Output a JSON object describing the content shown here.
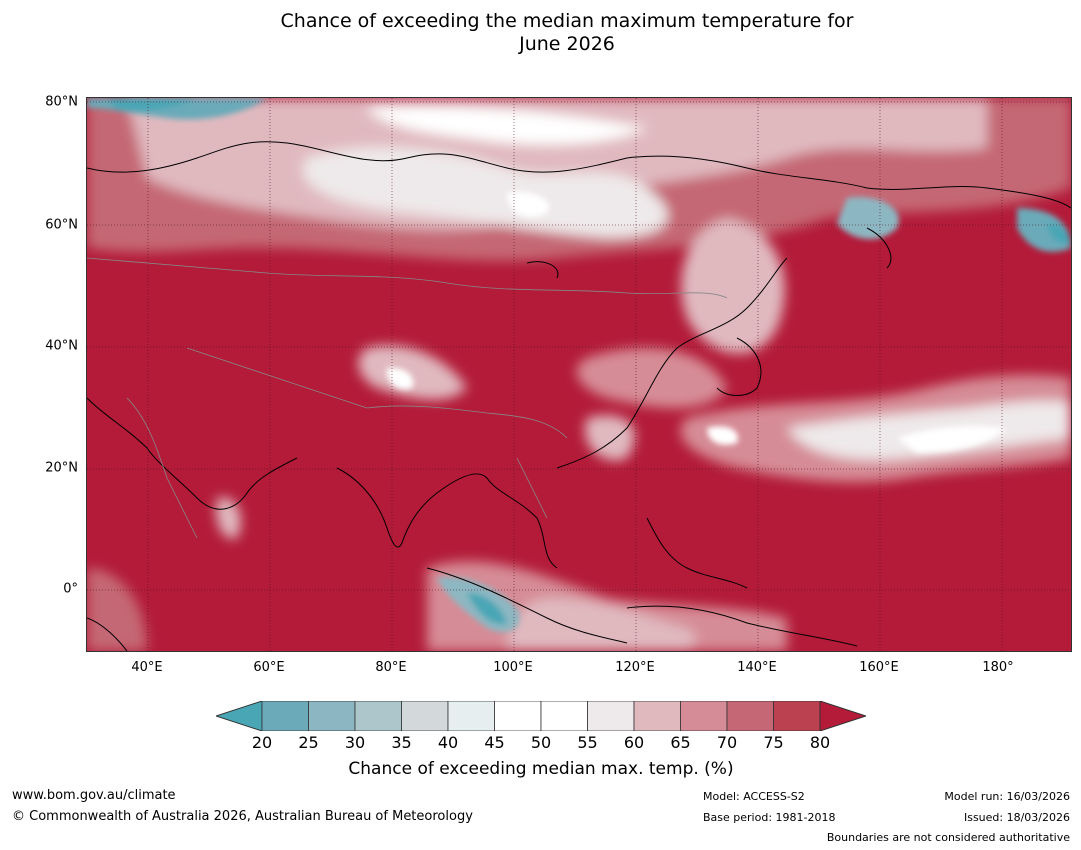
{
  "title": {
    "line1": "Chance of exceeding the median maximum temperature for",
    "line2": "June 2026"
  },
  "map": {
    "lat_labels": [
      "80°N",
      "60°N",
      "40°N",
      "20°N",
      "0°"
    ],
    "lon_labels": [
      "40°E",
      "60°E",
      "80°E",
      "100°E",
      "120°E",
      "140°E",
      "160°E",
      "180°"
    ],
    "extent": {
      "lon": [
        30,
        191
      ],
      "lat": [
        -10,
        80
      ]
    }
  },
  "colorbar": {
    "ticks": [
      "20",
      "25",
      "30",
      "35",
      "40",
      "45",
      "50",
      "55",
      "60",
      "65",
      "70",
      "75",
      "80"
    ],
    "colors": [
      "#6aaab9",
      "#8cb7c2",
      "#acc6cb",
      "#d3d8da",
      "#e7eef0",
      "#ffffff",
      "#ffffff",
      "#eee9ea",
      "#e0b9bf",
      "#d68c96",
      "#c56774",
      "#bc4150"
    ],
    "under_color": "#48a6b5",
    "over_color": "#b31b39",
    "label": "Chance of exceeding median max. temp. (%)"
  },
  "footer": {
    "website": "www.bom.gov.au/climate",
    "copyright": "© Commonwealth of Australia 2026, Australian Bureau of Meteorology",
    "model": "Model: ACCESS-S2",
    "base_period": "Base period: 1981-2018",
    "model_run": "Model run: 16/03/2026",
    "issued": "Issued: 18/03/2026",
    "disclaimer": "Boundaries are not considered authoritative"
  }
}
